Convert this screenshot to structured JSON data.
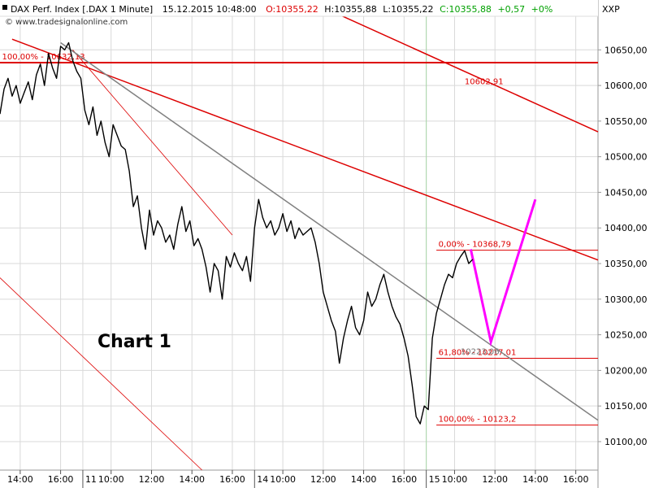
{
  "header": {
    "instrument": "DAX Perf. Index [.DAX  1 Minute]",
    "datetime": "15.12.2015 10:48:00",
    "open": "O:10355,22",
    "high": "H:10355,88",
    "low": "L:10355,22",
    "close": "C:10355,88",
    "change": "+0,57",
    "change_pct": "+0%",
    "source": "© www.tradesignalonline.com",
    "axis_tag": "XXP"
  },
  "annotation": "Chart 1",
  "colors": {
    "price": "#000000",
    "grid": "#d9d9d9",
    "red": "#dd0000",
    "trend": "#808080",
    "projection": "#ff00ff",
    "session": "#a8d8a8"
  },
  "chart_data": {
    "type": "line",
    "title": "DAX Perf. Index [.DAX  1 Minute]",
    "ylim": [
      10060,
      10720
    ],
    "yticks": [
      10100,
      10150,
      10200,
      10250,
      10300,
      10350,
      10400,
      10450,
      10500,
      10550,
      10600,
      10650
    ],
    "ytick_labels": [
      "10100,00",
      "10150,00",
      "10200,00",
      "10250,00",
      "10300,00",
      "10350,00",
      "10400,00",
      "10450,00",
      "10500,00",
      "10550,00",
      "10600,00",
      "10650,00"
    ],
    "xlim": [
      0,
      148
    ],
    "xticks": [
      {
        "t": 5,
        "label": "14:00",
        "major": false
      },
      {
        "t": 15,
        "label": "16:00",
        "major": false
      },
      {
        "t": 20.5,
        "label": "11",
        "major": true
      },
      {
        "t": 27.5,
        "label": "10:00",
        "major": false
      },
      {
        "t": 37.5,
        "label": "12:00",
        "major": false
      },
      {
        "t": 47.5,
        "label": "14:00",
        "major": false
      },
      {
        "t": 57.5,
        "label": "16:00",
        "major": false
      },
      {
        "t": 63,
        "label": "14",
        "major": true
      },
      {
        "t": 70,
        "label": "10:00",
        "major": false
      },
      {
        "t": 80,
        "label": "12:00",
        "major": false
      },
      {
        "t": 90,
        "label": "14:00",
        "major": false
      },
      {
        "t": 100,
        "label": "16:00",
        "major": false
      },
      {
        "t": 105.5,
        "label": "15",
        "major": true
      },
      {
        "t": 112.5,
        "label": "10:00",
        "major": false
      },
      {
        "t": 122.5,
        "label": "12:00",
        "major": false
      },
      {
        "t": 132.5,
        "label": "14:00",
        "major": false
      },
      {
        "t": 142.5,
        "label": "16:00",
        "major": false
      }
    ],
    "session_t": 105.5,
    "price": [
      [
        0,
        10560
      ],
      [
        1,
        10595
      ],
      [
        2,
        10610
      ],
      [
        3,
        10585
      ],
      [
        4,
        10600
      ],
      [
        5,
        10575
      ],
      [
        6,
        10590
      ],
      [
        7,
        10605
      ],
      [
        8,
        10580
      ],
      [
        9,
        10615
      ],
      [
        10,
        10630
      ],
      [
        11,
        10600
      ],
      [
        12,
        10645
      ],
      [
        13,
        10625
      ],
      [
        14,
        10610
      ],
      [
        15,
        10655
      ],
      [
        16,
        10650
      ],
      [
        17,
        10660
      ],
      [
        18,
        10635
      ],
      [
        19,
        10620
      ],
      [
        20,
        10610
      ],
      [
        21,
        10565
      ],
      [
        22,
        10545
      ],
      [
        23,
        10570
      ],
      [
        24,
        10530
      ],
      [
        25,
        10550
      ],
      [
        26,
        10520
      ],
      [
        27,
        10500
      ],
      [
        28,
        10545
      ],
      [
        29,
        10530
      ],
      [
        30,
        10515
      ],
      [
        31,
        10510
      ],
      [
        32,
        10480
      ],
      [
        33,
        10430
      ],
      [
        34,
        10445
      ],
      [
        35,
        10400
      ],
      [
        36,
        10370
      ],
      [
        37,
        10425
      ],
      [
        38,
        10390
      ],
      [
        39,
        10410
      ],
      [
        40,
        10400
      ],
      [
        41,
        10380
      ],
      [
        42,
        10390
      ],
      [
        43,
        10370
      ],
      [
        44,
        10405
      ],
      [
        45,
        10430
      ],
      [
        46,
        10395
      ],
      [
        47,
        10410
      ],
      [
        48,
        10375
      ],
      [
        49,
        10385
      ],
      [
        50,
        10370
      ],
      [
        51,
        10345
      ],
      [
        52,
        10310
      ],
      [
        53,
        10350
      ],
      [
        54,
        10340
      ],
      [
        55,
        10300
      ],
      [
        56,
        10360
      ],
      [
        57,
        10345
      ],
      [
        58,
        10365
      ],
      [
        59,
        10350
      ],
      [
        60,
        10340
      ],
      [
        61,
        10360
      ],
      [
        62,
        10325
      ],
      [
        63,
        10400
      ],
      [
        64,
        10440
      ],
      [
        65,
        10415
      ],
      [
        66,
        10400
      ],
      [
        67,
        10410
      ],
      [
        68,
        10390
      ],
      [
        69,
        10400
      ],
      [
        70,
        10420
      ],
      [
        71,
        10395
      ],
      [
        72,
        10410
      ],
      [
        73,
        10385
      ],
      [
        74,
        10400
      ],
      [
        75,
        10390
      ],
      [
        76,
        10395
      ],
      [
        77,
        10400
      ],
      [
        78,
        10380
      ],
      [
        79,
        10350
      ],
      [
        80,
        10310
      ],
      [
        81,
        10290
      ],
      [
        82,
        10270
      ],
      [
        83,
        10255
      ],
      [
        84,
        10210
      ],
      [
        85,
        10245
      ],
      [
        86,
        10270
      ],
      [
        87,
        10290
      ],
      [
        88,
        10260
      ],
      [
        89,
        10250
      ],
      [
        90,
        10270
      ],
      [
        91,
        10310
      ],
      [
        92,
        10290
      ],
      [
        93,
        10300
      ],
      [
        94,
        10320
      ],
      [
        95,
        10335
      ],
      [
        96,
        10310
      ],
      [
        97,
        10290
      ],
      [
        98,
        10275
      ],
      [
        99,
        10265
      ],
      [
        100,
        10245
      ],
      [
        101,
        10220
      ],
      [
        102,
        10180
      ],
      [
        103,
        10135
      ],
      [
        104,
        10125
      ],
      [
        105,
        10150
      ],
      [
        106,
        10145
      ],
      [
        107,
        10245
      ],
      [
        108,
        10280
      ],
      [
        109,
        10300
      ],
      [
        110,
        10320
      ],
      [
        111,
        10335
      ],
      [
        112,
        10330
      ],
      [
        113,
        10350
      ],
      [
        114,
        10360
      ],
      [
        115,
        10368
      ],
      [
        116,
        10350
      ],
      [
        117,
        10356
      ]
    ],
    "hlines": [
      {
        "y": 10632.13,
        "t1": 0,
        "t2": 148,
        "label": "100,00% - 10632,13",
        "label_t": 0.5
      },
      {
        "y": 10368.79,
        "t1": 108,
        "t2": 148,
        "label": "0,00% - 10368,79",
        "label_t": 108.5
      },
      {
        "y": 10217.01,
        "t1": 108,
        "t2": 148,
        "label": "61,80% - 10217,01",
        "label_t": 108.5
      },
      {
        "y": 10123.2,
        "t1": 108,
        "t2": 148,
        "label": "100,00% - 10123,2",
        "label_t": 108.5
      }
    ],
    "trendlines": [
      {
        "kind": "red",
        "width": 1.5,
        "p1": [
          3,
          10665
        ],
        "p2": [
          148,
          10355
        ],
        "label": "",
        "label_at": [
          0,
          0
        ]
      },
      {
        "kind": "red",
        "width": 1.5,
        "p1": [
          72,
          10730
        ],
        "p2": [
          148,
          10535
        ],
        "label": "10602,91",
        "label_at": [
          115,
          10602
        ]
      },
      {
        "kind": "red",
        "width": 0.8,
        "p1": [
          18,
          10650
        ],
        "p2": [
          57.5,
          10390
        ],
        "label": "",
        "label_at": [
          0,
          0
        ]
      },
      {
        "kind": "red",
        "width": 0.8,
        "p1": [
          0,
          10330
        ],
        "p2": [
          50,
          10060
        ],
        "label": "",
        "label_at": [
          0,
          0
        ]
      },
      {
        "kind": "trend",
        "width": 1.5,
        "p1": [
          15,
          10660
        ],
        "p2": [
          148,
          10130
        ],
        "label": "10223,06",
        "label_at": [
          114,
          10223
        ]
      }
    ],
    "projection": [
      [
        116.5,
        10370
      ],
      [
        121.5,
        10240
      ],
      [
        132.5,
        10440
      ]
    ]
  }
}
